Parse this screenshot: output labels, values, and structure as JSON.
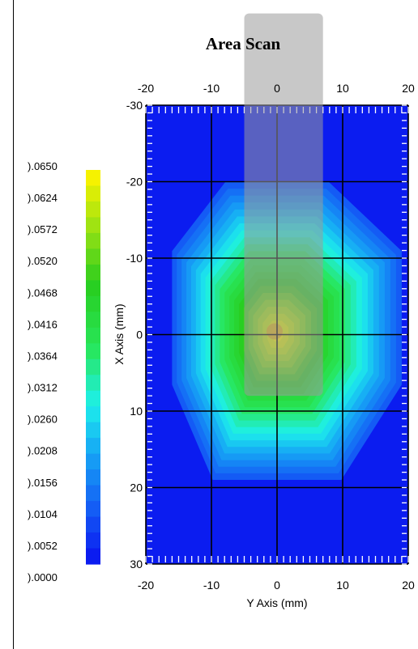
{
  "chart_data": {
    "type": "heatmap",
    "title": "Area Scan",
    "xlabel": "Y Axis (mm)",
    "ylabel": "X Axis (mm)",
    "x_ticks": [
      "-20",
      "-10",
      "0",
      "10",
      "20"
    ],
    "y_ticks": [
      "-30",
      "-20",
      "-10",
      "0",
      "10",
      "20",
      "30"
    ],
    "xlim": [
      -20,
      20
    ],
    "ylim": [
      -30,
      30
    ],
    "grid": true,
    "colorbar": {
      "labels": [
        ").0650",
        ").0624",
        ").0572",
        ").0520",
        ").0468",
        ").0416",
        ").0364",
        ").0312",
        ").0260",
        ").0208",
        ").0156",
        ").0104",
        ").0052",
        ").0000"
      ],
      "min": 0.0,
      "max": 0.065
    },
    "peak": {
      "y_mm": 0,
      "x_mm": 0,
      "value": 0.065
    },
    "field_extent_mm": {
      "y_left": -16,
      "y_right": 19,
      "x_top": -20,
      "x_bottom": 19
    },
    "overlay": {
      "y_range_mm": [
        -5,
        7
      ],
      "x_range_mm": [
        -42,
        8
      ]
    },
    "colors": {
      "low": "#0b1cf0",
      "mid_cyan": "#1ef2f0",
      "mid_green": "#2bd620",
      "high": "#f6f200",
      "overlay": "#9a9a9a"
    }
  }
}
